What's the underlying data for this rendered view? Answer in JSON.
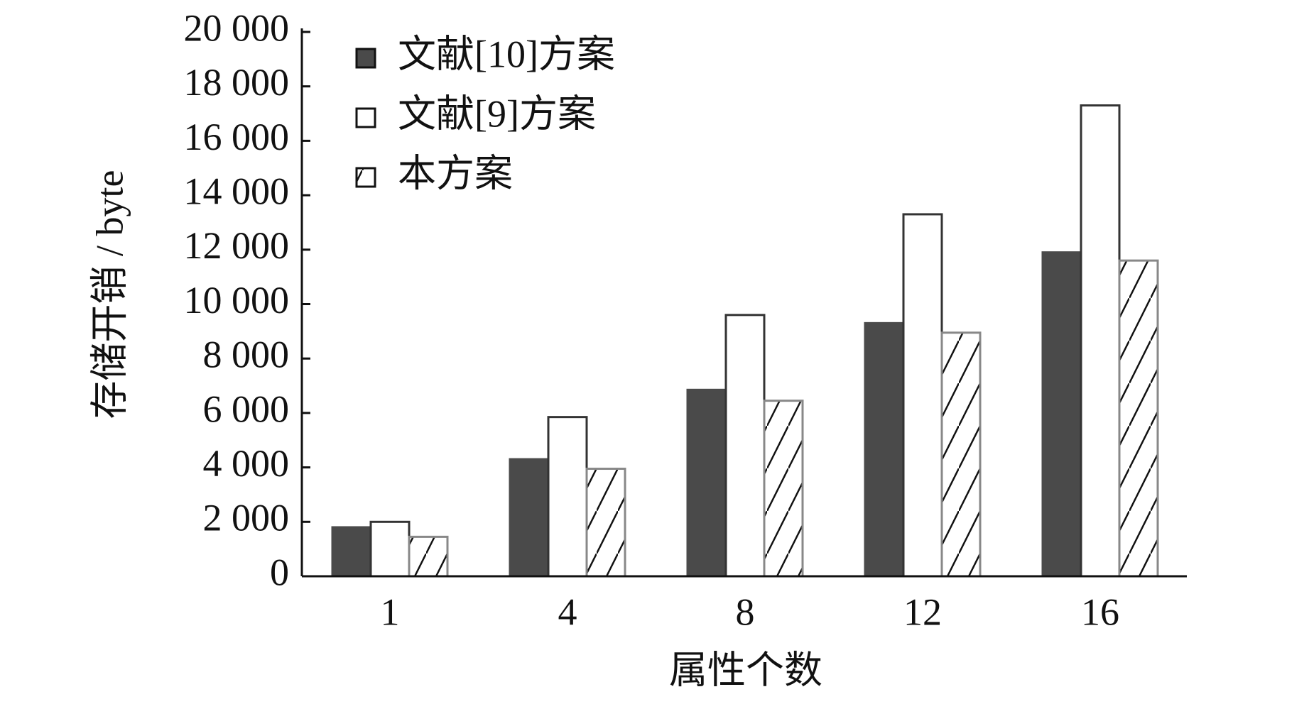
{
  "chart_data": {
    "type": "bar",
    "x_label": "属性个数",
    "y_label": "存储开销 / byte",
    "categories": [
      "1",
      "4",
      "8",
      "12",
      "16"
    ],
    "series": [
      {
        "name": "文献[10]方案",
        "color": "#4a4a4a",
        "values": [
          1800,
          4300,
          6850,
          9300,
          11900
        ]
      },
      {
        "name": "文献[9]方案",
        "color": "#ffffff",
        "values": [
          2000,
          5850,
          9600,
          13300,
          17300
        ]
      },
      {
        "name": "本方案",
        "color": "#ffffff",
        "hatch": true,
        "values": [
          1450,
          3950,
          6450,
          8950,
          11600
        ]
      }
    ],
    "ylim": [
      0,
      20000
    ],
    "yticks": [
      0,
      {
        "value": 2000,
        "label": "2 000"
      },
      {
        "value": 4000,
        "label": "4 000"
      },
      {
        "value": 6000,
        "label": "6 000"
      },
      {
        "value": 8000,
        "label": "8 000"
      },
      {
        "value": 10000,
        "label": "10 000"
      },
      {
        "value": 12000,
        "label": "12 000"
      },
      {
        "value": 14000,
        "label": "14 000"
      },
      {
        "value": 16000,
        "label": "16 000"
      },
      {
        "value": 18000,
        "label": "18 000"
      },
      {
        "value": 20000,
        "label": "20 000"
      }
    ],
    "grid": false,
    "legend": "upper-left"
  }
}
